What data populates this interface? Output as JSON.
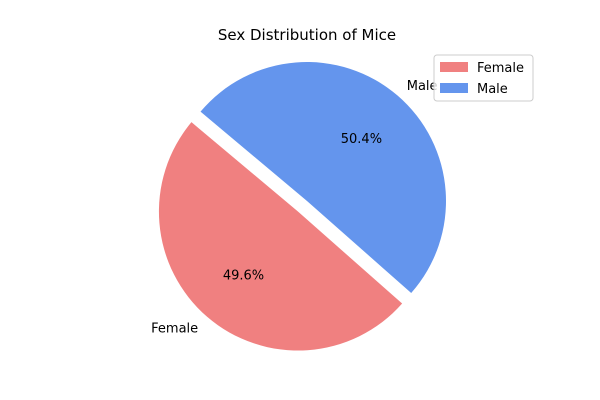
{
  "chart_data": {
    "type": "pie",
    "title": "Sex Distribution of Mice",
    "categories": [
      "Female",
      "Male"
    ],
    "values": [
      49.6,
      50.4
    ],
    "percent_labels": [
      "49.6%",
      "50.4%"
    ],
    "colors": [
      "#f08080",
      "#6495ed"
    ],
    "explode": [
      0.1,
      0.0
    ],
    "start_angle_deg": 140,
    "legend": {
      "placement": "top-right",
      "entries": [
        "Female",
        "Male"
      ]
    }
  }
}
